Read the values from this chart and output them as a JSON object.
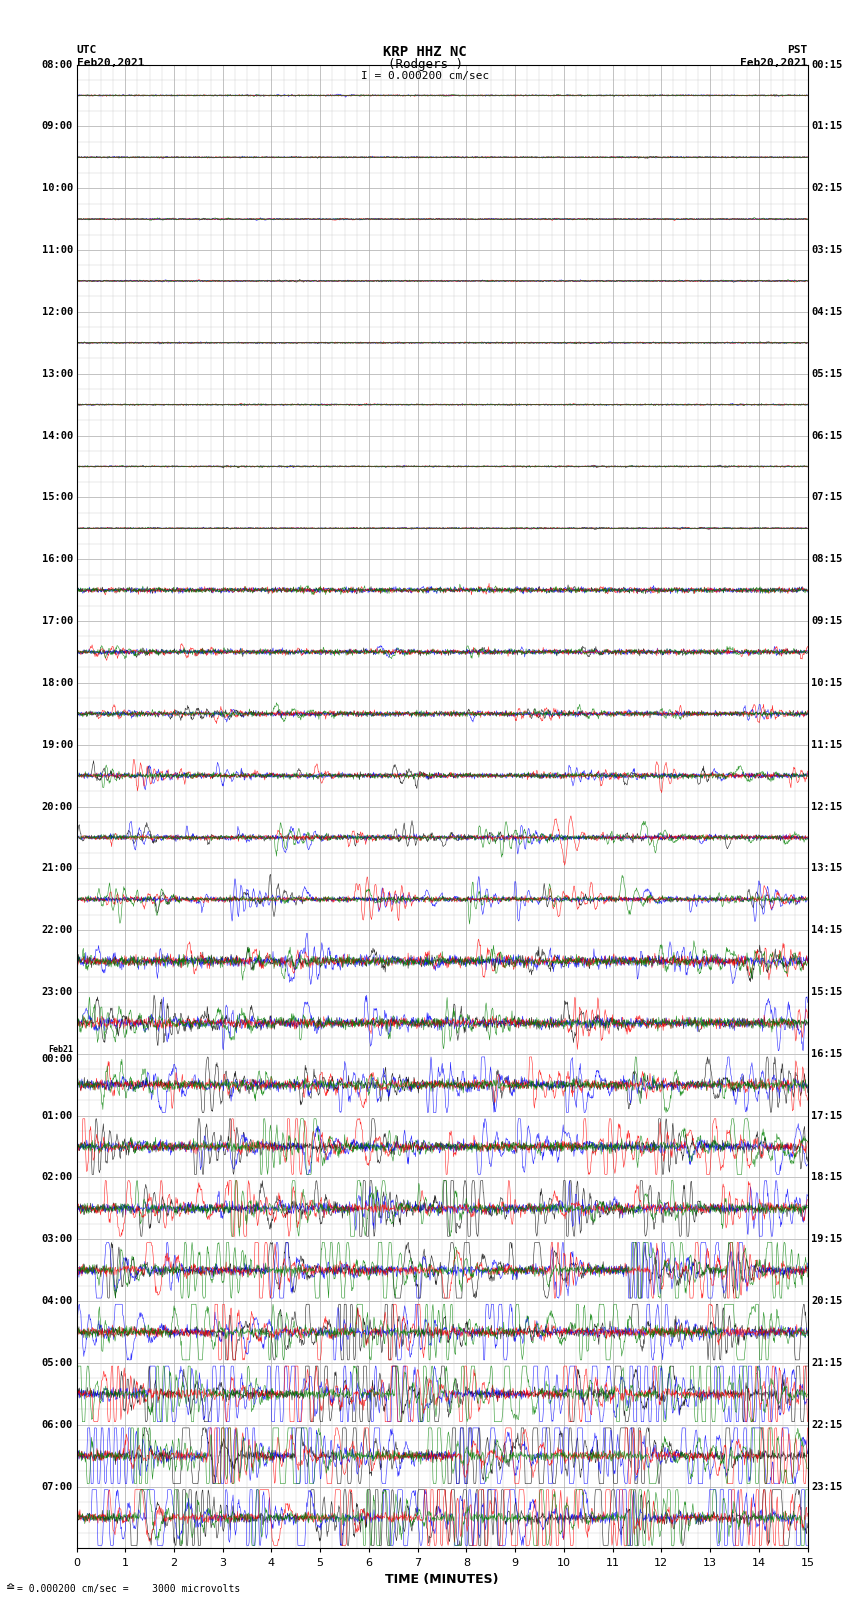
{
  "title_line1": "KRP HHZ NC",
  "title_line2": "(Rodgers )",
  "title_line3": "I = 0.000200 cm/sec",
  "utc_label": "UTC\nFeb20,2021",
  "pst_label": "PST\nFeb20,2021",
  "utc_times": [
    "08:00",
    "09:00",
    "10:00",
    "11:00",
    "12:00",
    "13:00",
    "14:00",
    "15:00",
    "16:00",
    "17:00",
    "18:00",
    "19:00",
    "20:00",
    "21:00",
    "22:00",
    "23:00",
    "Feb21\n00:00",
    "01:00",
    "02:00",
    "03:00",
    "04:00",
    "05:00",
    "06:00",
    "07:00"
  ],
  "pst_times": [
    "00:15",
    "01:15",
    "02:15",
    "03:15",
    "04:15",
    "05:15",
    "06:15",
    "07:15",
    "08:15",
    "09:15",
    "10:15",
    "11:15",
    "12:15",
    "13:15",
    "14:15",
    "15:15",
    "16:15",
    "17:15",
    "18:15",
    "19:15",
    "20:15",
    "21:15",
    "22:15",
    "23:15"
  ],
  "xlabel": "TIME (MINUTES)",
  "xticks": [
    0,
    1,
    2,
    3,
    4,
    5,
    6,
    7,
    8,
    9,
    10,
    11,
    12,
    13,
    14,
    15
  ],
  "xlim": [
    0,
    15
  ],
  "ylim": [
    0,
    24
  ],
  "n_rows": 24,
  "n_minutes_per_row": 15,
  "bottom_label": "= 0.000200 cm/sec =    3000 microvolts",
  "colors": [
    "black",
    "blue",
    "red",
    "green"
  ],
  "background_color": "#ffffff",
  "grid_color": "#aaaaaa",
  "minor_grid_color": "#cccccc",
  "figsize": [
    8.5,
    16.13
  ],
  "dpi": 100
}
